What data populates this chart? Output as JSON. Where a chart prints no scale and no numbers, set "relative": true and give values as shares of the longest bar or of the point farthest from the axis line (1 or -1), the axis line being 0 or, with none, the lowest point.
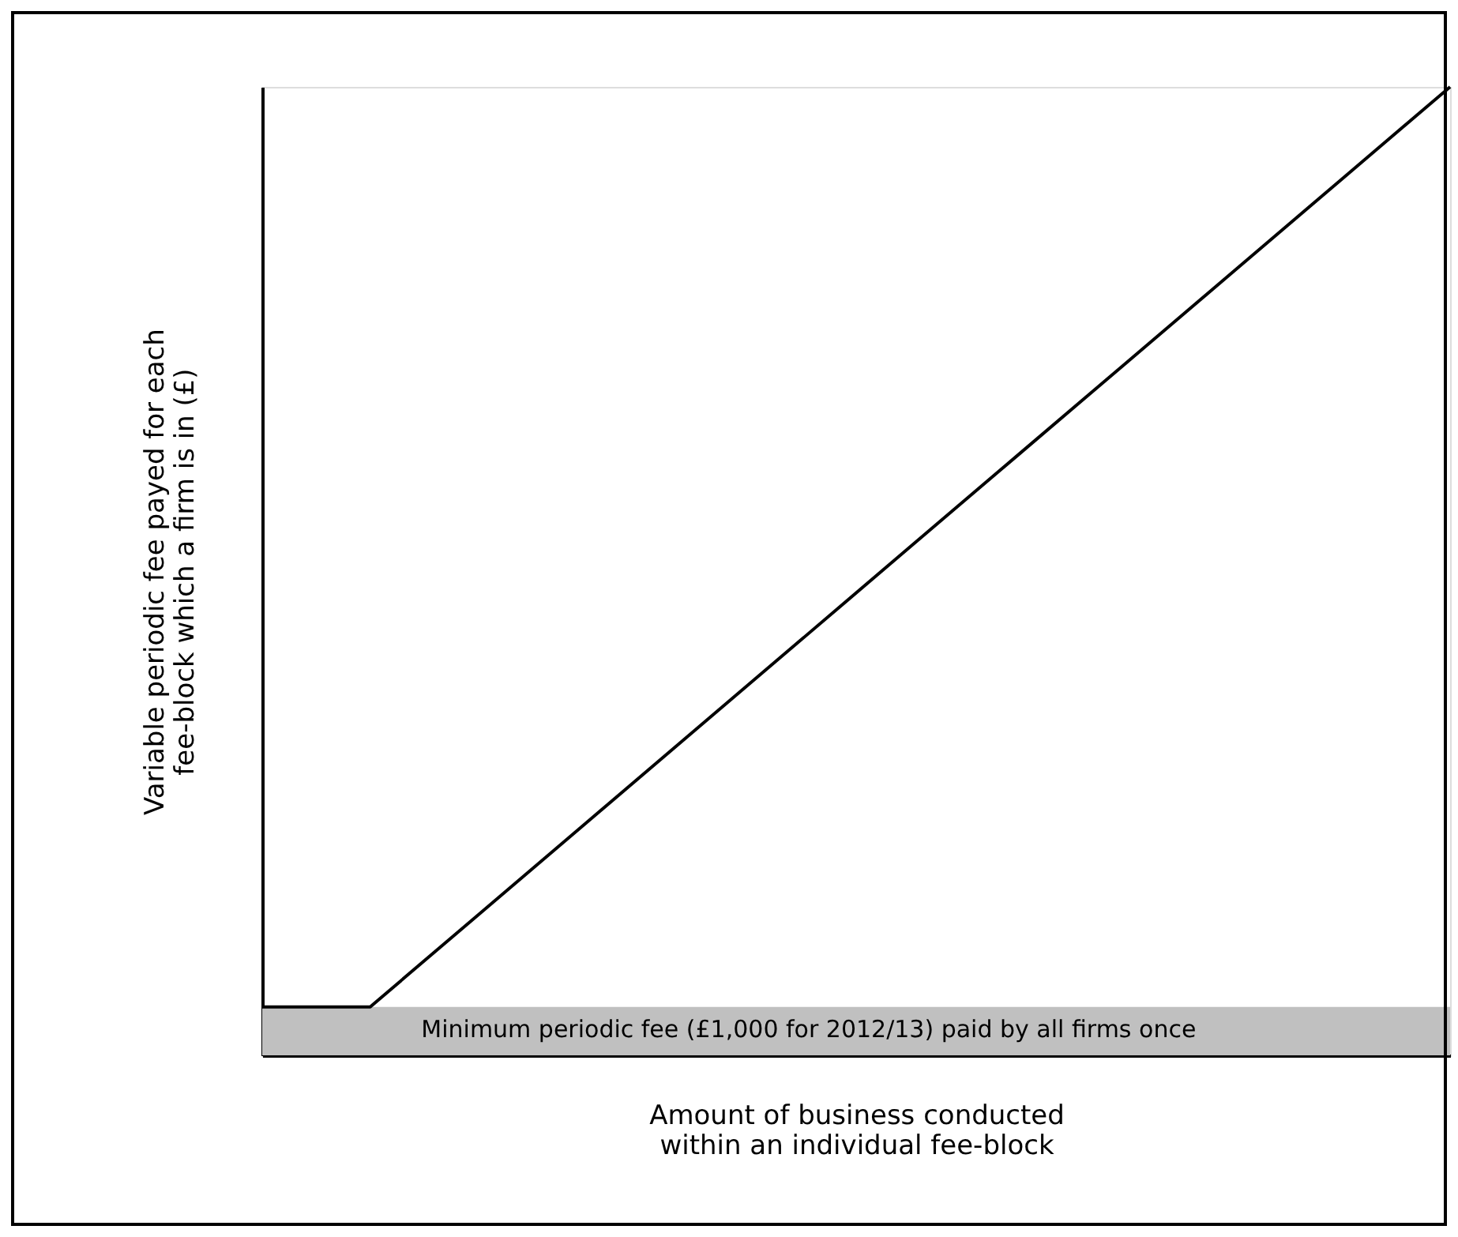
{
  "chart_data": {
    "type": "line",
    "relative": true,
    "xlabel": "Amount of business conducted within an individual fee-block",
    "ylabel": "Variable periodic fee payed for each fee-block which a firm is in (£)",
    "categories": [
      null,
      null,
      null,
      null,
      null,
      null,
      null,
      null,
      null,
      null,
      null,
      null
    ],
    "series": [
      {
        "color": "#000000",
        "values": [
          0.05,
          0.05,
          0.145,
          0.24,
          0.335,
          0.43,
          0.525,
          0.62,
          0.715,
          0.81,
          0.905,
          1.0
        ]
      }
    ],
    "bands": [
      {
        "axis": "y",
        "from": 0,
        "to": 0.05,
        "label": "Minimum periodic fee (£1,000 for 2012/13) paid by all firms once",
        "color": "#c0c0c0"
      }
    ],
    "marker": "none",
    "line_style": "solid"
  }
}
